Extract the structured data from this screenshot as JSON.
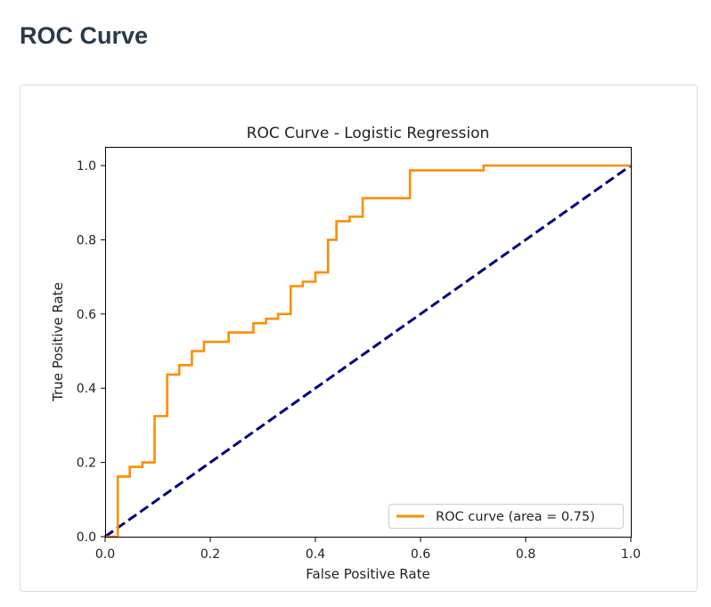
{
  "page": {
    "heading": "ROC Curve"
  },
  "chart_data": {
    "type": "line",
    "title": "ROC Curve - Logistic Regression",
    "xlabel": "False Positive Rate",
    "ylabel": "True Positive Rate",
    "xlim": [
      0.0,
      1.0
    ],
    "ylim": [
      0.0,
      1.0
    ],
    "x_ticks": [
      "0.0",
      "0.2",
      "0.4",
      "0.6",
      "0.8",
      "1.0"
    ],
    "y_ticks": [
      "0.0",
      "0.2",
      "0.4",
      "0.6",
      "0.8",
      "1.0"
    ],
    "grid": false,
    "legend_position": "lower-right",
    "series": [
      {
        "name": "ROC curve (area = 0.75)",
        "color": "#ff8c00",
        "style": "solid",
        "x": [
          0.0,
          0.024,
          0.024,
          0.047,
          0.047,
          0.071,
          0.071,
          0.094,
          0.094,
          0.118,
          0.118,
          0.141,
          0.141,
          0.165,
          0.165,
          0.188,
          0.188,
          0.235,
          0.235,
          0.282,
          0.282,
          0.306,
          0.306,
          0.329,
          0.329,
          0.353,
          0.353,
          0.376,
          0.376,
          0.4,
          0.4,
          0.424,
          0.424,
          0.44,
          0.44,
          0.465,
          0.465,
          0.49,
          0.49,
          0.58,
          0.58,
          0.72,
          0.72,
          1.0
        ],
        "y": [
          0.0,
          0.0,
          0.162,
          0.162,
          0.188,
          0.188,
          0.2,
          0.2,
          0.325,
          0.325,
          0.437,
          0.437,
          0.462,
          0.462,
          0.5,
          0.5,
          0.525,
          0.525,
          0.55,
          0.55,
          0.575,
          0.575,
          0.587,
          0.587,
          0.6,
          0.6,
          0.675,
          0.675,
          0.687,
          0.687,
          0.712,
          0.712,
          0.8,
          0.8,
          0.85,
          0.85,
          0.862,
          0.862,
          0.912,
          0.912,
          0.987,
          0.987,
          1.0,
          1.0
        ]
      },
      {
        "name": "",
        "color": "#000080",
        "style": "dashed",
        "x": [
          0.0,
          1.0
        ],
        "y": [
          0.0,
          1.0
        ]
      }
    ]
  }
}
